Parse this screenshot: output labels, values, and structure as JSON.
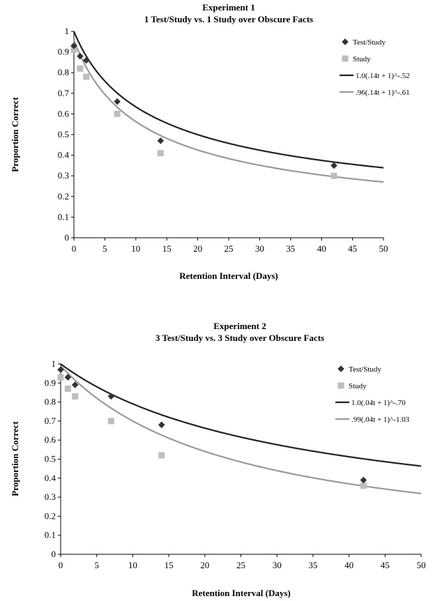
{
  "chart_data": [
    {
      "type": "scatter",
      "title": "Experiment 1",
      "subtitle": "1 Test/Study vs. 1 Study over Obscure Facts",
      "xlabel": "Retention Interval (Days)",
      "ylabel": "Proportion Correct",
      "xlim": [
        0,
        50
      ],
      "ylim": [
        0,
        1
      ],
      "x_ticks": [
        "0",
        "5",
        "10",
        "15",
        "20",
        "25",
        "30",
        "35",
        "40",
        "45",
        "50"
      ],
      "y_ticks": [
        "0",
        "0.1",
        "0.2",
        "0.3",
        "0.4",
        "0.5",
        "0.6",
        "0.7",
        "0.8",
        "0.9",
        "1"
      ],
      "grid": false,
      "legend_position": "top-right",
      "series": [
        {
          "name": "Test/Study",
          "marker": "diamond",
          "color": "#333333",
          "points": [
            {
              "x": 0,
              "y": 0.93
            },
            {
              "x": 1,
              "y": 0.88
            },
            {
              "x": 2,
              "y": 0.86
            },
            {
              "x": 7,
              "y": 0.66
            },
            {
              "x": 14,
              "y": 0.47
            },
            {
              "x": 42,
              "y": 0.35
            }
          ]
        },
        {
          "name": "Study",
          "marker": "square",
          "color": "#bdbdbd",
          "points": [
            {
              "x": 0,
              "y": 0.91
            },
            {
              "x": 1,
              "y": 0.82
            },
            {
              "x": 2,
              "y": 0.78
            },
            {
              "x": 7,
              "y": 0.6
            },
            {
              "x": 14,
              "y": 0.41
            },
            {
              "x": 42,
              "y": 0.3
            }
          ]
        }
      ],
      "fits": [
        {
          "name": "1.0(.14t + 1)^-.52",
          "a": 1.0,
          "b": 0.14,
          "c": 0.52,
          "color": "#222222"
        },
        {
          "name": ".96(.14t + 1)^-.61",
          "a": 0.96,
          "b": 0.14,
          "c": 0.61,
          "color": "#999999"
        }
      ]
    },
    {
      "type": "scatter",
      "title": "Experiment 2",
      "subtitle": "3 Test/Study vs. 3 Study over Obscure Facts",
      "xlabel": "Retention Interval (Days)",
      "ylabel": "Proportion Correct",
      "xlim": [
        0,
        50
      ],
      "ylim": [
        0,
        1
      ],
      "x_ticks": [
        "0",
        "5",
        "10",
        "15",
        "20",
        "25",
        "30",
        "35",
        "40",
        "45",
        "50"
      ],
      "y_ticks": [
        "0",
        "0.1",
        "0.2",
        "0.3",
        "0.4",
        "0.5",
        "0.6",
        "0.7",
        "0.8",
        "0.9",
        "1"
      ],
      "grid": false,
      "legend_position": "top-right",
      "series": [
        {
          "name": "Test/Study",
          "marker": "diamond",
          "color": "#333333",
          "points": [
            {
              "x": 0,
              "y": 0.97
            },
            {
              "x": 1,
              "y": 0.93
            },
            {
              "x": 2,
              "y": 0.89
            },
            {
              "x": 7,
              "y": 0.83
            },
            {
              "x": 14,
              "y": 0.68
            },
            {
              "x": 42,
              "y": 0.39
            }
          ]
        },
        {
          "name": "Study",
          "marker": "square",
          "color": "#bdbdbd",
          "points": [
            {
              "x": 0,
              "y": 0.93
            },
            {
              "x": 1,
              "y": 0.87
            },
            {
              "x": 2,
              "y": 0.83
            },
            {
              "x": 7,
              "y": 0.7
            },
            {
              "x": 14,
              "y": 0.52
            },
            {
              "x": 42,
              "y": 0.36
            }
          ]
        }
      ],
      "fits": [
        {
          "name": "1.0(.04t + 1)^-.70",
          "a": 1.0,
          "b": 0.04,
          "c": 0.7,
          "color": "#222222"
        },
        {
          "name": ".99(.04t + 1)^-1.03",
          "a": 0.99,
          "b": 0.04,
          "c": 1.03,
          "color": "#999999"
        }
      ]
    }
  ]
}
